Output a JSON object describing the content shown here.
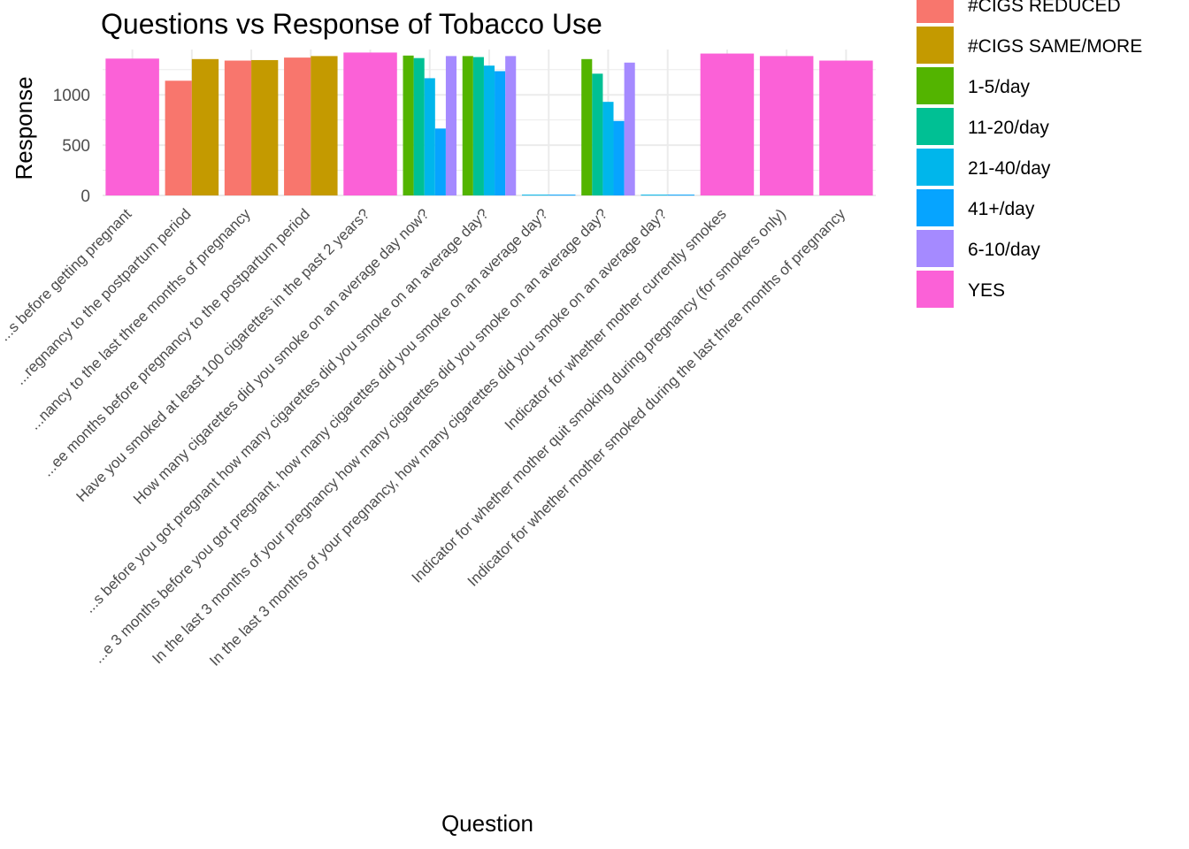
{
  "chart_data": {
    "type": "bar",
    "title": "Questions vs Response of Tobacco Use",
    "xlabel": "Question",
    "ylabel": "Response",
    "ylim": [
      0,
      1450
    ],
    "yticks": [
      0,
      500,
      1000
    ],
    "grid": true,
    "legend_position": "right",
    "categories": [
      "...s before getting pregnant",
      "...regnancy to the postpartum period",
      "...nancy to the last three months of pregnancy",
      "...ee months before pregnancy to the postpartum period",
      "Have you smoked at least 100 cigarettes in the past 2 years?",
      "How many cigarettes did you smoke on an average day now?",
      "...s before you got pregnant  how many cigarettes did you smoke on an average day?",
      "...e 3 months before you got pregnant, how many cigarettes did you smoke on an average day?",
      "In the last 3 months of your pregnancy  how many cigarettes did you smoke on an average day?",
      "In the last 3 months of your pregnancy, how many cigarettes did you smoke on an average day?",
      "Indicator for whether mother currently smokes",
      "Indicator for whether mother quit smoking during pregnancy (for smokers only)",
      "Indicator for whether mother smoked during the last three months of pregnancy"
    ],
    "series": [
      {
        "name": "#CIGS REDUCED",
        "color": "#F8766D",
        "values": [
          null,
          1140,
          1340,
          1370,
          null,
          null,
          null,
          null,
          null,
          null,
          null,
          null,
          null
        ]
      },
      {
        "name": "#CIGS SAME/MORE",
        "color": "#C49A00",
        "values": [
          null,
          1355,
          1345,
          1385,
          null,
          null,
          null,
          null,
          null,
          null,
          null,
          null,
          null
        ]
      },
      {
        "name": "1-5/day",
        "color": "#53B400",
        "values": [
          null,
          null,
          null,
          null,
          null,
          1390,
          1385,
          null,
          1355,
          null,
          null,
          null,
          null
        ]
      },
      {
        "name": "11-20/day",
        "color": "#00C094",
        "values": [
          null,
          null,
          null,
          null,
          null,
          1365,
          1375,
          null,
          1210,
          null,
          null,
          null,
          null
        ]
      },
      {
        "name": "21-40/day",
        "color": "#00B6EB",
        "values": [
          null,
          null,
          null,
          null,
          null,
          1165,
          1290,
          8,
          930,
          8,
          null,
          null,
          null
        ]
      },
      {
        "name": "41+/day",
        "color": "#06A4FF",
        "values": [
          null,
          null,
          null,
          null,
          null,
          665,
          1235,
          8,
          740,
          8,
          null,
          null,
          null
        ]
      },
      {
        "name": "6-10/day",
        "color": "#A58AFF",
        "values": [
          null,
          null,
          null,
          null,
          null,
          1385,
          1385,
          null,
          1320,
          null,
          null,
          null,
          null
        ]
      },
      {
        "name": "YES",
        "color": "#FB61D7",
        "values": [
          1360,
          null,
          null,
          null,
          1420,
          null,
          null,
          null,
          null,
          null,
          1410,
          1385,
          1340
        ]
      }
    ]
  }
}
